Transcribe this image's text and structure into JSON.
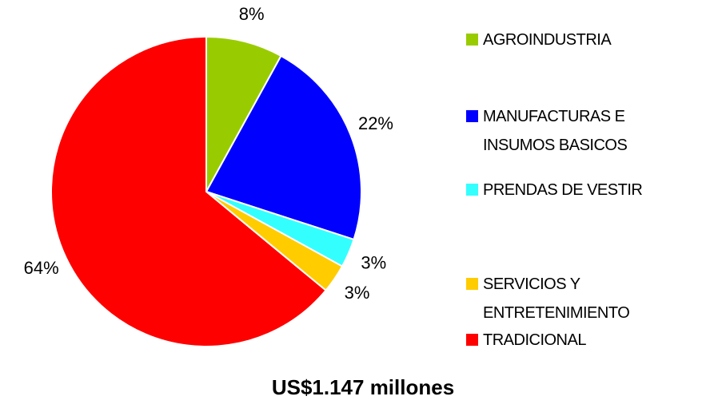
{
  "chart_data": {
    "type": "pie",
    "title": "US$1.147 millones",
    "categories": [
      "AGROINDUSTRIA",
      "MANUFACTURAS E\nINSUMOS BASICOS",
      "PRENDAS DE VESTIR",
      "SERVICIOS Y\nENTRETENIMIENTO",
      "TRADICIONAL"
    ],
    "values": [
      8,
      22,
      3,
      3,
      64
    ],
    "value_labels": [
      "8%",
      "22%",
      "3%",
      "3%",
      "64%"
    ],
    "colors": [
      "#99cc00",
      "#0000ff",
      "#33ffff",
      "#ffcc00",
      "#ff0000"
    ],
    "legend": "right"
  }
}
